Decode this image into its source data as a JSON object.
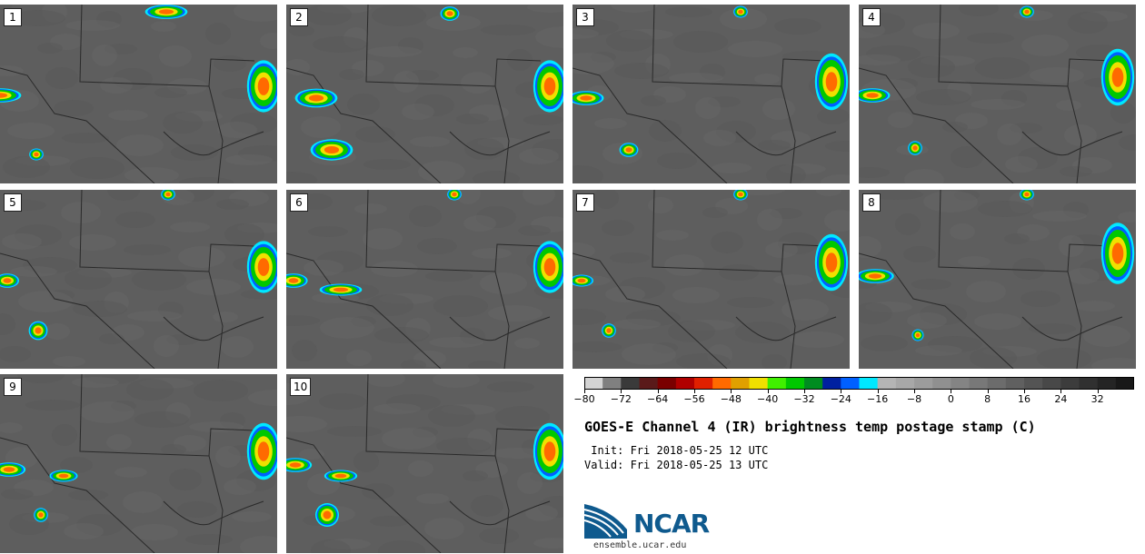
{
  "panels": [
    "1",
    "2",
    "3",
    "4",
    "5",
    "6",
    "7",
    "8",
    "9",
    "10"
  ],
  "colorbar": {
    "tick_labels": [
      "−80",
      "−72",
      "−64",
      "−56",
      "−48",
      "−40",
      "−32",
      "−24",
      "−16",
      "−8",
      "0",
      "8",
      "16",
      "24",
      "32"
    ],
    "min": -80,
    "max": 40,
    "colors": [
      "#d4d4d4",
      "#808080",
      "#3a3a3a",
      "#5a1a1a",
      "#7a0000",
      "#b00000",
      "#e02000",
      "#ff6a00",
      "#e0a000",
      "#f0e000",
      "#40f000",
      "#00c800",
      "#008c20",
      "#0020a0",
      "#0060ff",
      "#00e8ff",
      "#b4b4b4",
      "#a8a8a8",
      "#9c9c9c",
      "#909090",
      "#848484",
      "#787878",
      "#6c6c6c",
      "#606060",
      "#545454",
      "#484848",
      "#3c3c3c",
      "#303030",
      "#242424",
      "#181818"
    ]
  },
  "title": "GOES-E Channel 4 (IR) brightness temp postage stamp (C)",
  "init_line": " Init: Fri 2018-05-25 12 UTC",
  "valid_line": "Valid: Fri 2018-05-25 13 UTC",
  "logo_text": "NCAR",
  "logo_url": "ensemble.ucar.edu",
  "colors": {
    "background_land": "#5e5e5e",
    "border": "#222222"
  }
}
